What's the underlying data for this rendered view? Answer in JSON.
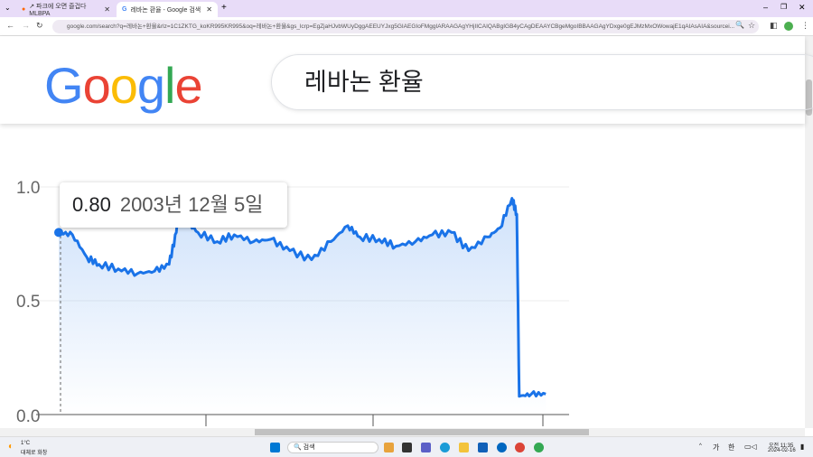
{
  "browser": {
    "tabs": [
      {
        "label": "↗ 파크에 오면 즐겁다 MLBPA",
        "active": false
      },
      {
        "label": "레바논 환율 - Google 검색",
        "active": true
      }
    ],
    "url": "google.com/search?q=레바논+환율&rlz=1C1ZKTG_koKR995KR995&oq=레바논+환율&gs_lcrp=EgZjaHJvbWUyDggAEEUYJxg5GIAEGIoFMggIARAAGAgYHjIICAIQABgIGB4yCAgDEAAYCBgeMgoIBBAAGAgYDxge0gEJMzMxOWowajE1qAIAsAIA&sourcei..."
  },
  "header": {
    "logo": "Google",
    "query": "레바논 환율"
  },
  "tooltip": {
    "value": "0.80",
    "date": "2003년 12월 5일"
  },
  "chart_data": {
    "type": "area",
    "title": "",
    "xlabel": "",
    "ylabel": "",
    "yticks": [
      "1.0",
      "0.5",
      "0.0"
    ],
    "ylim": [
      0,
      1.0
    ],
    "xlim": [
      2003.93,
      2024.13
    ],
    "color": "#1a73e8",
    "x": [
      2003.93,
      2004.5,
      2005.1,
      2005.6,
      2006.4,
      2007.2,
      2007.9,
      2008.5,
      2008.8,
      2009.0,
      2009.2,
      2009.7,
      2010.5,
      2011.2,
      2012.0,
      2012.7,
      2013.5,
      2014.4,
      2015.2,
      2015.9,
      2016.4,
      2017.2,
      2017.9,
      2018.7,
      2019.4,
      2020.2,
      2020.9,
      2021.7,
      2022.2,
      2022.7,
      2022.9,
      2023.0,
      2023.5,
      2024.1
    ],
    "y": [
      0.8,
      0.79,
      0.69,
      0.66,
      0.64,
      0.62,
      0.63,
      0.66,
      0.8,
      1.0,
      0.85,
      0.8,
      0.76,
      0.79,
      0.76,
      0.77,
      0.72,
      0.68,
      0.76,
      0.83,
      0.78,
      0.77,
      0.74,
      0.76,
      0.79,
      0.8,
      0.72,
      0.78,
      0.82,
      0.95,
      0.88,
      0.08,
      0.09,
      0.09
    ]
  },
  "taskbar": {
    "weather_temp": "1°C",
    "weather_text": "대체로 화창",
    "search": "검색",
    "ime1": "가",
    "ime2": "한",
    "time": "오전 11:35",
    "date": "2024-02-16"
  },
  "colors": {
    "tabbar": "#e8dcf8",
    "line": "#1a73e8"
  }
}
